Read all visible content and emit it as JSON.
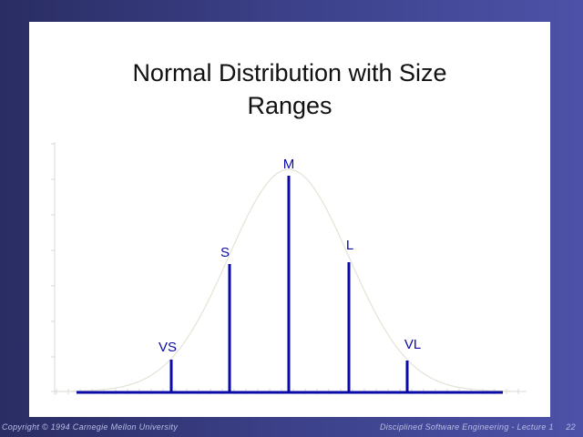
{
  "slide": {
    "title_line1": "Normal Distribution with Size",
    "title_line2": "Ranges"
  },
  "diagram": {
    "labels": [
      "VS",
      "S",
      "M",
      "L",
      "VL"
    ],
    "line_color": "#0a0aa6",
    "curve_color": "#e3e3d6",
    "label_color": "#0a0aa6"
  },
  "footer": {
    "copyright": "Copyright © 1994 Carnegie Mellon University",
    "course": "Disciplined Software Engineering - Lecture 1",
    "page": "22"
  }
}
